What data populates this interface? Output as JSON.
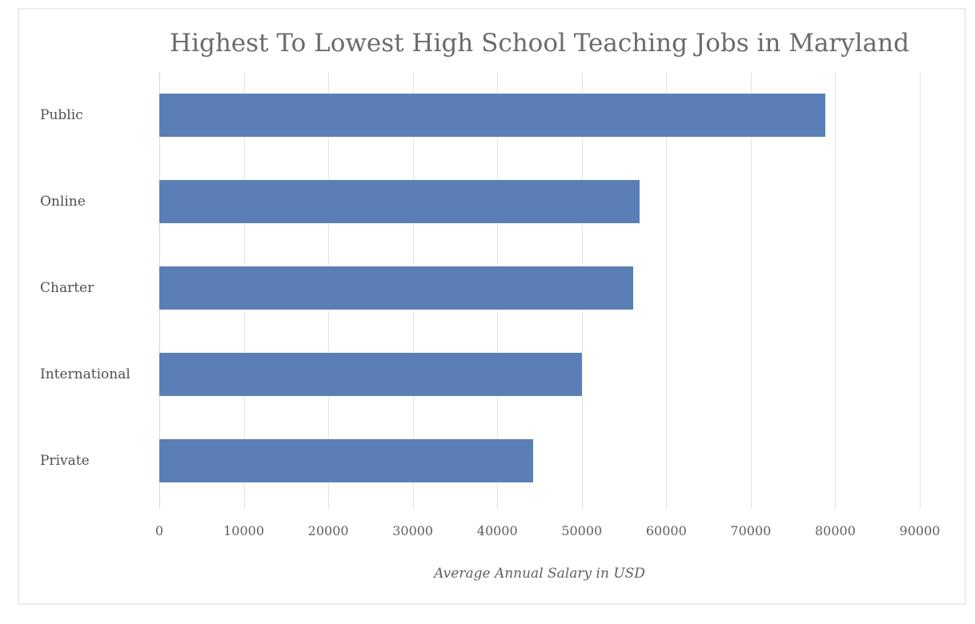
{
  "chart_data": {
    "type": "bar",
    "orientation": "horizontal",
    "title": "Highest To Lowest High School Teaching Jobs in Maryland",
    "xlabel": "Average Annual Salary in USD",
    "ylabel": "",
    "categories": [
      "Public",
      "Online",
      "Charter",
      "International",
      "Private"
    ],
    "values": [
      78800,
      56800,
      56100,
      50000,
      44200
    ],
    "x_ticks": [
      0,
      10000,
      20000,
      30000,
      40000,
      50000,
      60000,
      70000,
      80000,
      90000
    ],
    "xlim": [
      0,
      95200
    ],
    "grid": true,
    "legend": "none",
    "bar_color": "#5a7fb7",
    "gridline_color": "#e3e3e3",
    "text_color": "#606060"
  }
}
